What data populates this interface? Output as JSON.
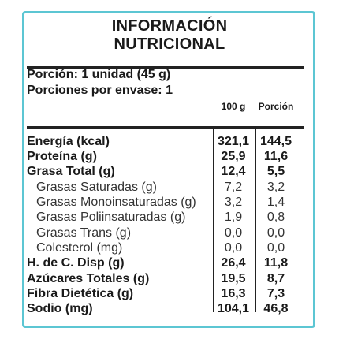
{
  "title": {
    "line1": "INFORMACIÓN",
    "line2": "NUTRICIONAL"
  },
  "portion": {
    "line1": "Porción: 1 unidad (45 g)",
    "line2": "Porciones por envase: 1"
  },
  "columns": {
    "per100": "100 g",
    "portion": "Porción"
  },
  "colors": {
    "frame": "#5cc6d3",
    "text": "#1a1a1a"
  },
  "rows": [
    {
      "label": "Energía (kcal)",
      "per100": "321,1",
      "portion": "144,5"
    },
    {
      "label": "Proteína (g)",
      "per100": "25,9",
      "portion": "11,6"
    },
    {
      "label": "Grasa Total (g)",
      "per100": "12,4",
      "portion": "5,5"
    },
    {
      "label": "Grasas Saturadas (g)",
      "per100": "7,2",
      "portion": "3,2"
    },
    {
      "label": "Grasas Monoinsaturadas (g)",
      "per100": "3,2",
      "portion": "1,4"
    },
    {
      "label": "Grasas Poliinsaturadas (g)",
      "per100": "1,9",
      "portion": "0,8"
    },
    {
      "label": "Grasas Trans (g)",
      "per100": "0,0",
      "portion": "0,0"
    },
    {
      "label": "Colesterol (mg)",
      "per100": "0,0",
      "portion": "0,0"
    },
    {
      "label": "H. de C. Disp (g)",
      "per100": "26,4",
      "portion": "11,8"
    },
    {
      "label": "Azúcares Totales (g)",
      "per100": "19,5",
      "portion": "8,7"
    },
    {
      "label": "Fibra Dietética (g)",
      "per100": "16,3",
      "portion": "7,3"
    },
    {
      "label": "Sodio (mg)",
      "per100": "104,1",
      "portion": "46,8"
    }
  ]
}
